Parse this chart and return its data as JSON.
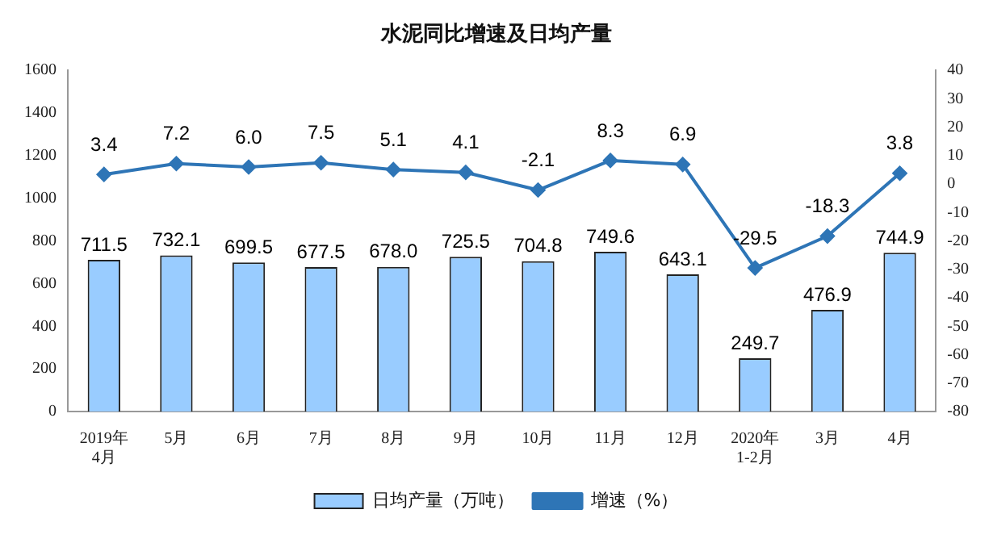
{
  "chart_data": {
    "type": "bar",
    "title": "水泥同比增速及日均产量",
    "categories": [
      "2019年\n4月",
      "5月",
      "6月",
      "7月",
      "8月",
      "9月",
      "10月",
      "11月",
      "12月",
      "2020年\n1-2月",
      "3月",
      "4月"
    ],
    "series": [
      {
        "name": "日均产量（万吨）",
        "color": "#99ccff",
        "values": [
          711.5,
          732.1,
          699.5,
          677.5,
          678.0,
          725.5,
          704.8,
          749.6,
          643.1,
          249.7,
          476.9,
          744.9
        ],
        "value_labels": [
          "711.5",
          "732.1",
          "699.5",
          "677.5",
          "678.0",
          "725.5",
          "704.8",
          "749.6",
          "643.1",
          "249.7",
          "476.9",
          "744.9"
        ]
      },
      {
        "name": "增速（%）",
        "type": "line",
        "axis": "y2",
        "color": "#2e75b6",
        "values": [
          3.4,
          7.2,
          6.0,
          7.5,
          5.1,
          4.1,
          -2.1,
          8.3,
          6.9,
          -29.5,
          -18.3,
          3.8
        ],
        "value_labels": [
          "3.4",
          "7.2",
          "6.0",
          "7.5",
          "5.1",
          "4.1",
          "-2.1",
          "8.3",
          "6.9",
          "-29.5",
          "-18.3",
          "3.8"
        ]
      }
    ],
    "ylim": [
      0,
      1600
    ],
    "yticks": [
      0,
      200,
      400,
      600,
      800,
      1000,
      1200,
      1400,
      1600
    ],
    "y2lim": [
      -80,
      40
    ],
    "y2ticks": [
      -80,
      -70,
      -60,
      -50,
      -40,
      -30,
      -20,
      -10,
      0,
      10,
      20,
      30,
      40
    ],
    "legend": "bottom",
    "grid": false,
    "marker": "diamond",
    "line_style": "solid"
  }
}
